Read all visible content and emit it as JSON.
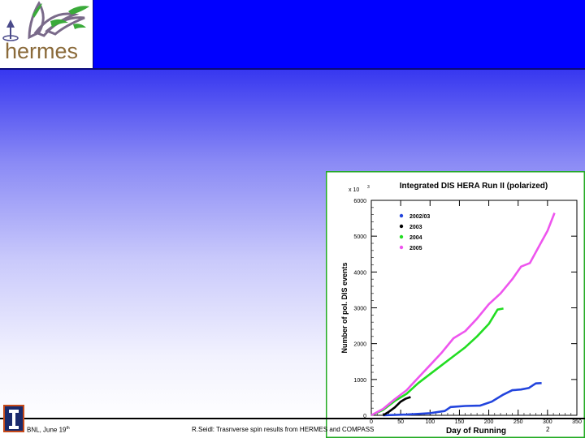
{
  "logo": {
    "text": "hermes"
  },
  "footer": {
    "left_text": "BNL, June 19",
    "left_sup": "th",
    "center_text": "R.Seidl: Trasnverse spin results from HERMES and COMPASS",
    "page_number": "2"
  },
  "colors": {
    "header_blue": "#0000ff",
    "s2002": "#2244dd",
    "s2003": "#000000",
    "s2004": "#22dd22",
    "s2005": "#ee55ee",
    "panel_border": "#22aa22"
  },
  "chart_data": {
    "type": "line",
    "title": "Integrated DIS HERA Run II (polarized)",
    "xlabel": "Day of Running",
    "ylabel": "Number of pol. DIS events",
    "y_multiplier": "x 10",
    "y_multiplier_exp": "3",
    "xlim": [
      0,
      350
    ],
    "ylim": [
      0,
      6000
    ],
    "x_ticks": [
      0,
      50,
      100,
      150,
      200,
      250,
      300,
      350
    ],
    "y_ticks": [
      0,
      1000,
      2000,
      3000,
      4000,
      5000,
      6000
    ],
    "legend_position": "top-left",
    "series": [
      {
        "name": "2002/03",
        "color": "#2244dd",
        "points": [
          [
            20,
            0
          ],
          [
            60,
            20
          ],
          [
            100,
            60
          ],
          [
            125,
            120
          ],
          [
            135,
            230
          ],
          [
            160,
            260
          ],
          [
            185,
            270
          ],
          [
            205,
            380
          ],
          [
            225,
            580
          ],
          [
            240,
            700
          ],
          [
            255,
            720
          ],
          [
            268,
            760
          ],
          [
            280,
            890
          ],
          [
            290,
            900
          ]
        ]
      },
      {
        "name": "2003",
        "color": "#000000",
        "points": [
          [
            20,
            0
          ],
          [
            30,
            100
          ],
          [
            40,
            220
          ],
          [
            50,
            380
          ],
          [
            58,
            460
          ],
          [
            67,
            510
          ]
        ]
      },
      {
        "name": "2004",
        "color": "#22dd22",
        "points": [
          [
            0,
            0
          ],
          [
            20,
            150
          ],
          [
            40,
            400
          ],
          [
            60,
            600
          ],
          [
            80,
            900
          ],
          [
            100,
            1150
          ],
          [
            120,
            1400
          ],
          [
            140,
            1650
          ],
          [
            160,
            1900
          ],
          [
            180,
            2200
          ],
          [
            200,
            2550
          ],
          [
            215,
            2950
          ],
          [
            225,
            2980
          ]
        ]
      },
      {
        "name": "2005",
        "color": "#ee55ee",
        "points": [
          [
            0,
            0
          ],
          [
            20,
            180
          ],
          [
            40,
            450
          ],
          [
            60,
            700
          ],
          [
            80,
            1050
          ],
          [
            100,
            1400
          ],
          [
            120,
            1750
          ],
          [
            140,
            2150
          ],
          [
            160,
            2350
          ],
          [
            180,
            2700
          ],
          [
            200,
            3100
          ],
          [
            220,
            3400
          ],
          [
            240,
            3800
          ],
          [
            255,
            4150
          ],
          [
            270,
            4250
          ],
          [
            285,
            4700
          ],
          [
            300,
            5150
          ],
          [
            312,
            5650
          ]
        ]
      }
    ]
  }
}
